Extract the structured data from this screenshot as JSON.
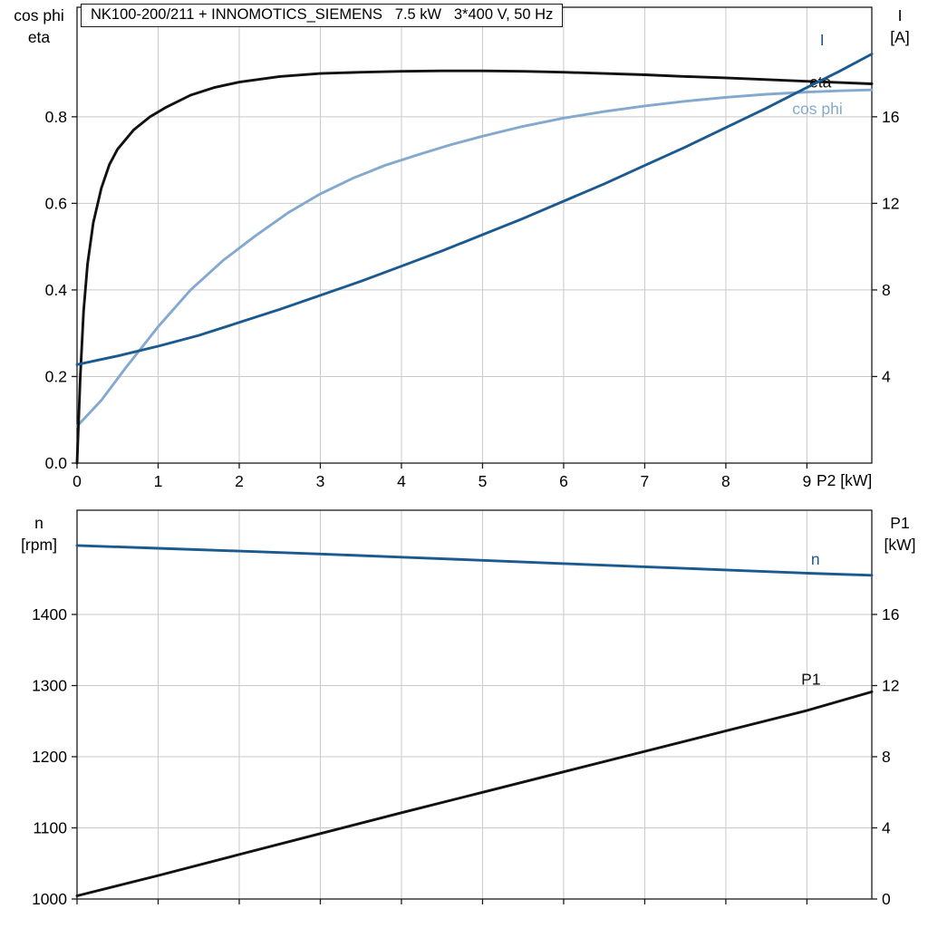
{
  "title": "NK100-200/211 + INNOMOTICS_SIEMENS   7.5 kW   3*400 V, 50 Hz",
  "colors": {
    "grid": "#c9c9c9",
    "axis": "#1a1a1a",
    "text": "#000000",
    "dark_blue": "#1b5a8f",
    "light_blue": "#84a9cf",
    "black_curve": "#111111"
  },
  "chart_data": [
    {
      "id": "top",
      "type": "line",
      "x_axis": {
        "label": "P2 [kW]",
        "min": 0,
        "max": 9.8,
        "tick_values": [
          0,
          1,
          2,
          3,
          4,
          5,
          6,
          7,
          8,
          9
        ],
        "tick_labels": [
          "0",
          "1",
          "2",
          "3",
          "4",
          "5",
          "6",
          "7",
          "8",
          "9"
        ],
        "grid": [
          1,
          2,
          3,
          4,
          5,
          6,
          7,
          8,
          9
        ]
      },
      "left_axis": {
        "header": [
          "cos phi",
          "eta"
        ],
        "min": 0,
        "max": 1.053,
        "tick_values": [
          0,
          0.2,
          0.4,
          0.6,
          0.8
        ],
        "tick_labels": [
          "0.0",
          "0.2",
          "0.4",
          "0.6",
          "0.8"
        ],
        "grid": [
          0.2,
          0.4,
          0.6,
          0.8
        ]
      },
      "right_axis": {
        "header": [
          "I",
          "[A]"
        ],
        "min": 0,
        "max": 21.06,
        "tick_values": [
          4,
          8,
          12,
          16
        ],
        "tick_labels": [
          "4",
          "8",
          "12",
          "16"
        ]
      },
      "series": [
        {
          "name": "cos phi",
          "axis": "left",
          "color": "#84a9cf",
          "label_pos": [
            8.82,
            0.806
          ],
          "points": [
            [
              0,
              0.085
            ],
            [
              0.3,
              0.145
            ],
            [
              0.6,
              0.22
            ],
            [
              1,
              0.315
            ],
            [
              1.4,
              0.4
            ],
            [
              1.8,
              0.468
            ],
            [
              2.2,
              0.525
            ],
            [
              2.6,
              0.578
            ],
            [
              3,
              0.622
            ],
            [
              3.4,
              0.658
            ],
            [
              3.8,
              0.688
            ],
            [
              4.2,
              0.712
            ],
            [
              4.6,
              0.735
            ],
            [
              5,
              0.755
            ],
            [
              5.5,
              0.778
            ],
            [
              6,
              0.797
            ],
            [
              6.5,
              0.812
            ],
            [
              7,
              0.825
            ],
            [
              7.5,
              0.836
            ],
            [
              8,
              0.845
            ],
            [
              8.5,
              0.852
            ],
            [
              9,
              0.857
            ],
            [
              9.4,
              0.86
            ],
            [
              9.8,
              0.862
            ]
          ]
        },
        {
          "name": "eta",
          "axis": "left",
          "color": "#111111",
          "label_pos": [
            9.03,
            0.868
          ],
          "points": [
            [
              0,
              0
            ],
            [
              0.04,
              0.2
            ],
            [
              0.08,
              0.35
            ],
            [
              0.13,
              0.46
            ],
            [
              0.2,
              0.555
            ],
            [
              0.3,
              0.635
            ],
            [
              0.4,
              0.69
            ],
            [
              0.5,
              0.725
            ],
            [
              0.7,
              0.77
            ],
            [
              0.9,
              0.8
            ],
            [
              1.1,
              0.822
            ],
            [
              1.4,
              0.85
            ],
            [
              1.7,
              0.868
            ],
            [
              2,
              0.88
            ],
            [
              2.5,
              0.893
            ],
            [
              3,
              0.9
            ],
            [
              3.5,
              0.903
            ],
            [
              4,
              0.905
            ],
            [
              4.5,
              0.906
            ],
            [
              5,
              0.906
            ],
            [
              5.5,
              0.905
            ],
            [
              6,
              0.903
            ],
            [
              6.5,
              0.9
            ],
            [
              7,
              0.897
            ],
            [
              7.5,
              0.893
            ],
            [
              8,
              0.89
            ],
            [
              8.5,
              0.886
            ],
            [
              9,
              0.882
            ],
            [
              9.4,
              0.879
            ],
            [
              9.8,
              0.876
            ]
          ]
        },
        {
          "name": "I",
          "axis": "right",
          "color": "#1b5a8f",
          "label_pos": [
            9.16,
            19.3
          ],
          "points": [
            [
              0,
              4.55
            ],
            [
              0.5,
              4.95
            ],
            [
              1,
              5.4
            ],
            [
              1.5,
              5.9
            ],
            [
              2,
              6.5
            ],
            [
              2.5,
              7.1
            ],
            [
              3,
              7.75
            ],
            [
              3.5,
              8.4
            ],
            [
              4,
              9.1
            ],
            [
              4.5,
              9.8
            ],
            [
              5,
              10.55
            ],
            [
              5.5,
              11.3
            ],
            [
              6,
              12.1
            ],
            [
              6.5,
              12.9
            ],
            [
              7,
              13.75
            ],
            [
              7.5,
              14.6
            ],
            [
              8,
              15.5
            ],
            [
              8.5,
              16.4
            ],
            [
              9,
              17.35
            ],
            [
              9.4,
              18.1
            ],
            [
              9.8,
              18.9
            ]
          ]
        }
      ]
    },
    {
      "id": "bottom",
      "type": "line",
      "x_axis": {
        "label": "",
        "min": 0,
        "max": 9.8,
        "tick_values": [
          0,
          1,
          2,
          3,
          4,
          5,
          6,
          7,
          8,
          9
        ],
        "tick_labels": [],
        "grid": [
          1,
          2,
          3,
          4,
          5,
          6,
          7,
          8,
          9
        ]
      },
      "left_axis": {
        "header": [
          "n",
          "[rpm]"
        ],
        "min": 1000,
        "max": 1546.5,
        "tick_values": [
          1000,
          1100,
          1200,
          1300,
          1400
        ],
        "tick_labels": [
          "1000",
          "1100",
          "1200",
          "1300",
          "1400"
        ],
        "grid": [
          1100,
          1200,
          1300,
          1400
        ]
      },
      "right_axis": {
        "header": [
          "P1",
          "[kW]"
        ],
        "min": 0,
        "max": 21.86,
        "tick_values": [
          0,
          4,
          8,
          12,
          16
        ],
        "tick_labels": [
          "0",
          "4",
          "8",
          "12",
          "16"
        ]
      },
      "series": [
        {
          "name": "n",
          "axis": "left",
          "color": "#1b5a8f",
          "label_pos": [
            9.05,
            1470
          ],
          "points": [
            [
              0,
              1497
            ],
            [
              1,
              1493
            ],
            [
              2,
              1489
            ],
            [
              3,
              1485
            ],
            [
              4,
              1480.5
            ],
            [
              5,
              1476
            ],
            [
              6,
              1471.5
            ],
            [
              7,
              1467
            ],
            [
              8,
              1462.5
            ],
            [
              9,
              1458
            ],
            [
              9.8,
              1455
            ]
          ]
        },
        {
          "name": "P1",
          "axis": "right",
          "color": "#111111",
          "label_pos": [
            8.93,
            12.05
          ],
          "points": [
            [
              0,
              0.18
            ],
            [
              1,
              1.32
            ],
            [
              2,
              2.5
            ],
            [
              3,
              3.68
            ],
            [
              4,
              4.85
            ],
            [
              5,
              6.0
            ],
            [
              6,
              7.15
            ],
            [
              7,
              8.3
            ],
            [
              8,
              9.45
            ],
            [
              9,
              10.6
            ],
            [
              9.8,
              11.65
            ]
          ]
        }
      ]
    }
  ]
}
